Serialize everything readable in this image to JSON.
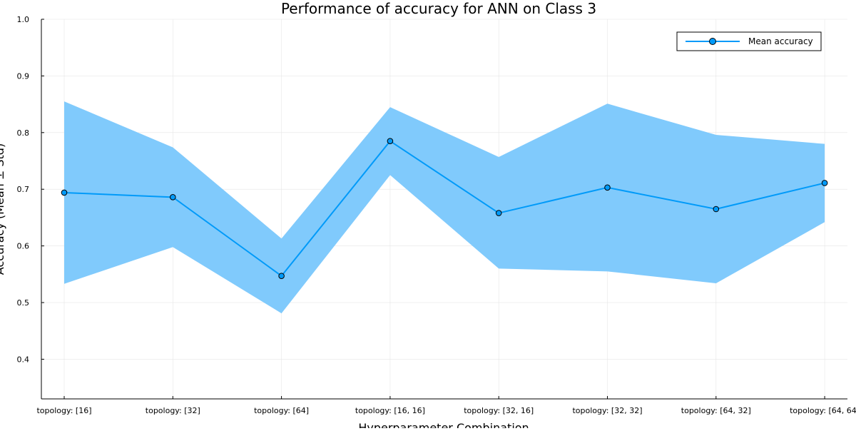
{
  "chart_data": {
    "type": "line",
    "title": "Performance of accuracy for ANN on Class 3",
    "xlabel": "Hyperparameter Combination",
    "ylabel": "Accuracy (Mean ± Std)",
    "categories": [
      "topology: [16]",
      "topology: [32]",
      "topology: [64]",
      "topology: [16, 16]",
      "topology: [32, 16]",
      "topology: [32, 32]",
      "topology: [64, 32]",
      "topology: [64, 64]"
    ],
    "series": [
      {
        "name": "Mean accuracy",
        "values": [
          0.694,
          0.686,
          0.547,
          0.785,
          0.658,
          0.703,
          0.665,
          0.711
        ],
        "band_upper": [
          0.855,
          0.774,
          0.613,
          0.845,
          0.757,
          0.851,
          0.796,
          0.78
        ],
        "band_lower": [
          0.533,
          0.598,
          0.481,
          0.725,
          0.56,
          0.555,
          0.534,
          0.642
        ]
      }
    ],
    "ylim": [
      0.33,
      1.0
    ],
    "yticks": [
      0.4,
      0.5,
      0.6,
      0.7,
      0.8,
      0.9,
      1.0
    ],
    "ytick_labels": [
      "0.4",
      "0.5",
      "0.6",
      "0.7",
      "0.8",
      "0.9",
      "1.0"
    ],
    "grid": true,
    "legend_position": "top-right",
    "colors": {
      "line": "#009af9",
      "band": "#80cafc",
      "axis": "#000000",
      "grid": "#e6e6e6"
    }
  }
}
